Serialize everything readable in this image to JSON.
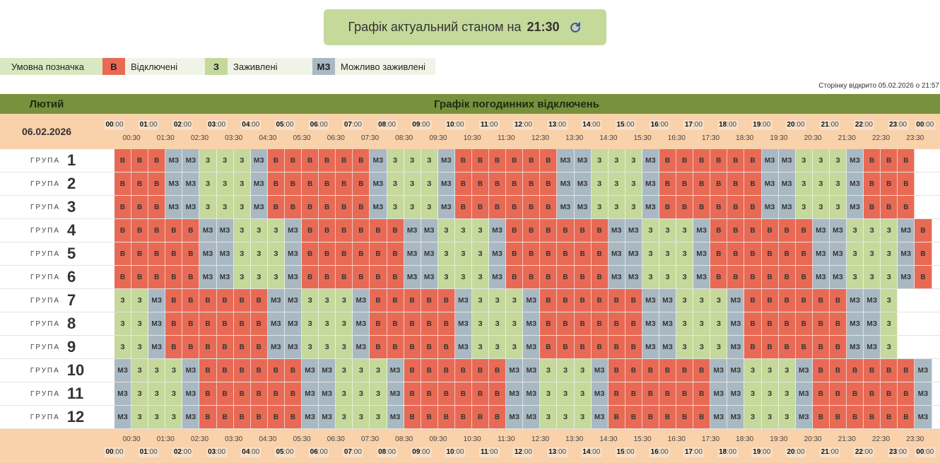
{
  "banner": {
    "text": "Графік актуальний станом на",
    "time": "21:30",
    "refresh_icon": "refresh-icon"
  },
  "legend": {
    "label": "Умовна позначка",
    "items": [
      {
        "code": "В",
        "text": "Відключені",
        "color": "#e86a55"
      },
      {
        "code": "З",
        "text": "Заживлені",
        "color": "#c5d99b"
      },
      {
        "code": "МЗ",
        "text": "Можливо заживлені",
        "color": "#a9b9c3"
      }
    ]
  },
  "opened_note": "Сторінку відкрито 05.02.2026 о 21:57",
  "table": {
    "month": "Лютий",
    "title": "Графік погодинних відключень",
    "date": "06.02.2026",
    "group_word": "ГРУПА",
    "hours": [
      "00",
      "01",
      "02",
      "03",
      "04",
      "05",
      "06",
      "07",
      "08",
      "09",
      "10",
      "11",
      "12",
      "13",
      "14",
      "15",
      "16",
      "17",
      "18",
      "19",
      "20",
      "21",
      "22",
      "23",
      "00"
    ],
    "half_hours": [
      "00:30",
      "01:30",
      "02:30",
      "03:30",
      "04:30",
      "05:30",
      "06:30",
      "07:30",
      "08:30",
      "09:30",
      "10:30",
      "11:30",
      "12:30",
      "13:30",
      "14:30",
      "15:30",
      "16:30",
      "17:30",
      "18:30",
      "19:30",
      "20:30",
      "21:30",
      "22:30",
      "23:30"
    ],
    "groups": [
      {
        "num": "1",
        "cells": "V V V M M Z Z Z M V V V V V V M Z Z Z M V V V V V V M M Z Z Z M V V V V V V M M Z Z Z M V V V"
      },
      {
        "num": "2",
        "cells": "V V V M M Z Z Z M V V V V V V M Z Z Z M V V V V V V M M Z Z Z M V V V V V V M M Z Z Z M V V V"
      },
      {
        "num": "3",
        "cells": "V V V M M Z Z Z M V V V V V V M Z Z Z M V V V V V V M M Z Z Z M V V V V V V M M Z Z Z M V V V"
      },
      {
        "num": "4",
        "cells": "V V V V V M M Z Z Z M V V V V V V M M Z Z Z M V V V V V V M M Z Z Z M V V V V V V M M Z Z Z M V"
      },
      {
        "num": "5",
        "cells": "V V V V V M M Z Z Z M V V V V V V M M Z Z Z M V V V V V V M M Z Z Z M V V V V V V M M Z Z Z M V"
      },
      {
        "num": "6",
        "cells": "V V V V V M M Z Z Z M V V V V V V M M Z Z Z M V V V V V V M M Z Z Z M V V V V V V M M Z Z Z M V"
      },
      {
        "num": "7",
        "cells": "Z Z M V V V V V V M M Z Z Z M V V V V V M Z Z Z M V V V V V V M M Z Z Z M V V V V V V M M Z"
      },
      {
        "num": "8",
        "cells": "Z Z M V V V V V V M M Z Z Z M V V V V V M Z Z Z M V V V V V V M M Z Z Z M V V V V V V M M Z"
      },
      {
        "num": "9",
        "cells": "Z Z M V V V V V V M M Z Z Z M V V V V V M Z Z Z M V V V V V V M M Z Z Z M V V V V V V M M Z"
      },
      {
        "num": "10",
        "cells": "M Z Z Z M V V V V V V M M Z Z Z M V V V V V V M M Z Z Z M V V V V V V M M Z Z Z M V V V V V V M"
      },
      {
        "num": "11",
        "cells": "M Z Z Z M V V V V V V M M Z Z Z M V V V V V V M M Z Z Z M V V V V V V M M Z Z Z M V V V V V V M"
      },
      {
        "num": "12",
        "cells": "M Z Z Z M V V V V V V M M Z Z Z M V V V V V V M M Z Z Z M V V V V V V M M Z Z Z M V V V V V V M"
      }
    ]
  }
}
